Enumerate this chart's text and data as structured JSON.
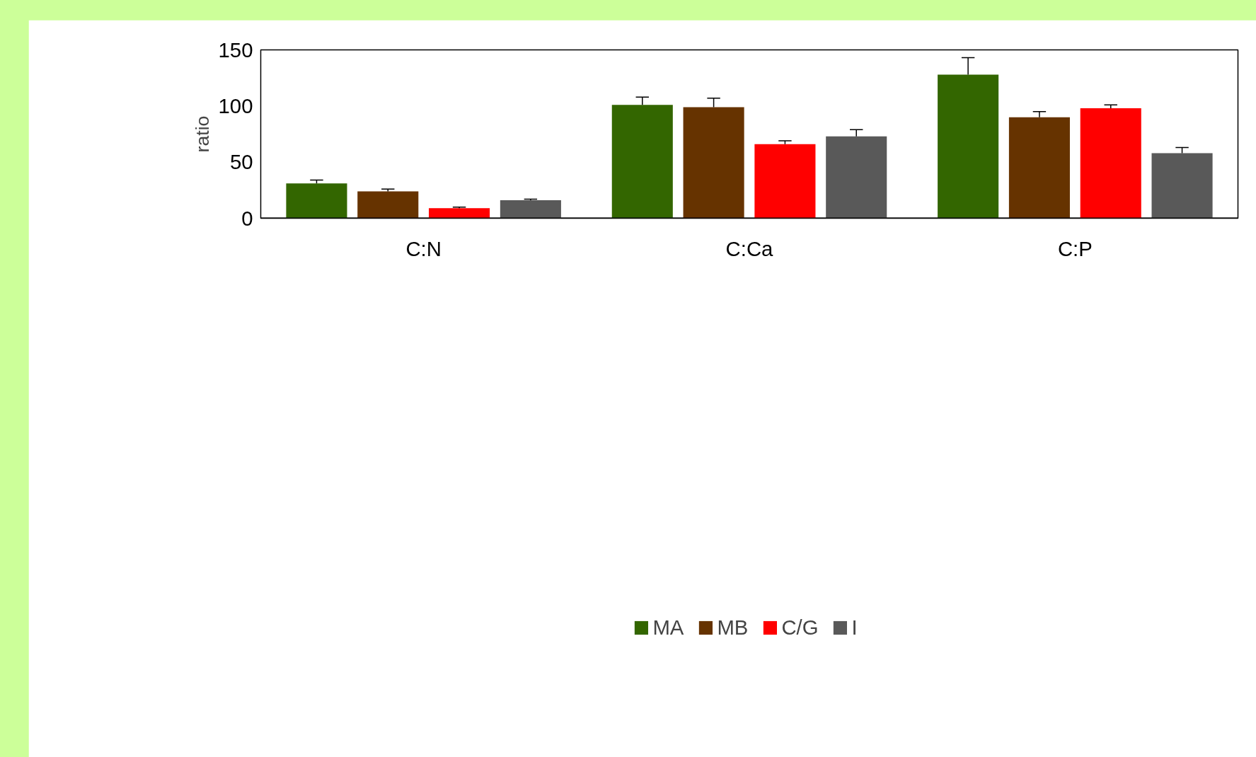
{
  "chart_data": {
    "type": "bar",
    "ylabel": "ratio",
    "categories": [
      "C:N",
      "C:Ca",
      "C:P"
    ],
    "series": [
      {
        "name": "MA",
        "color": "#336600",
        "values": [
          31,
          101,
          128
        ],
        "errors": [
          [
            31,
            34
          ],
          [
            101,
            108
          ],
          [
            128,
            143
          ]
        ]
      },
      {
        "name": "MB",
        "color": "#663300",
        "values": [
          24,
          99,
          90
        ],
        "errors": [
          [
            24,
            26
          ],
          [
            99,
            107
          ],
          [
            90,
            95
          ]
        ]
      },
      {
        "name": "C/G",
        "color": "#ff0000",
        "values": [
          9,
          66,
          98
        ],
        "errors": [
          [
            9,
            10
          ],
          [
            66,
            69
          ],
          [
            98,
            101
          ]
        ]
      },
      {
        "name": "I",
        "color": "#595959",
        "values": [
          16,
          73,
          58
        ],
        "errors": [
          [
            16,
            17
          ],
          [
            73,
            79
          ],
          [
            58,
            63
          ]
        ]
      }
    ],
    "ylim": [
      0,
      150
    ],
    "yticks": [
      0,
      50,
      100,
      150
    ],
    "grid": false,
    "legend": "bottom"
  }
}
